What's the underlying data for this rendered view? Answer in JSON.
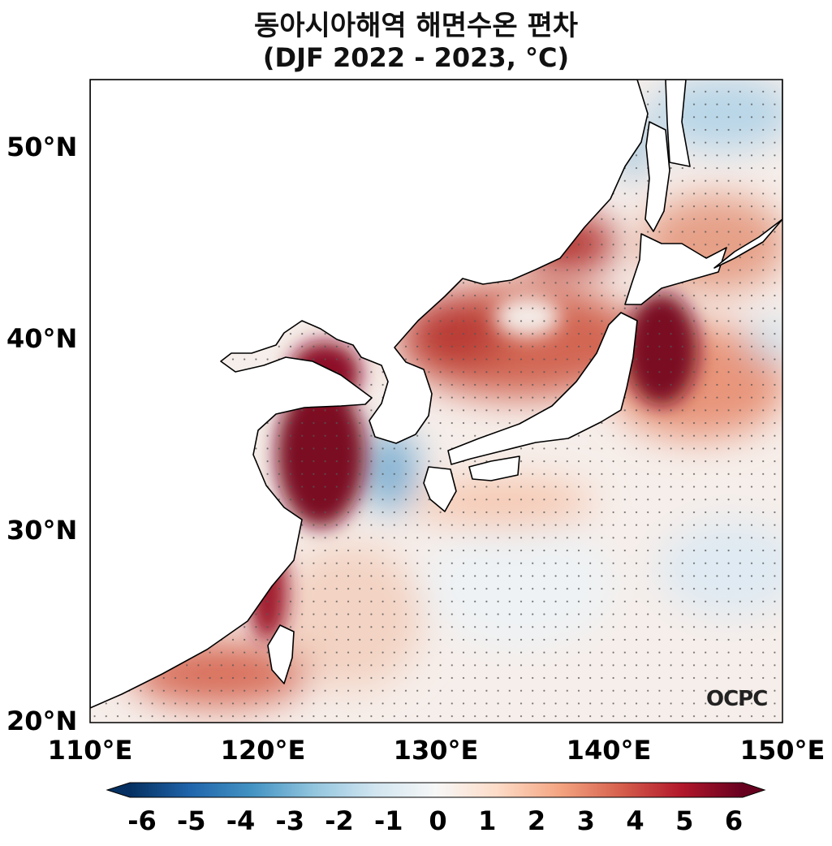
{
  "title": "동아시아해역 해면수온 편차",
  "subtitle": "(DJF 2022 - 2023, °C)",
  "map": {
    "region": "East Asian seas",
    "lon_range": [
      110,
      150
    ],
    "lat_range": [
      20,
      53.5
    ],
    "y_ticks": [
      "50°N",
      "40°N",
      "30°N",
      "20°N"
    ],
    "x_ticks": [
      "110°E",
      "120°E",
      "130°E",
      "140°E",
      "150°E"
    ],
    "variable": "SST anomaly",
    "stippling": true,
    "land_color": "#ffffff",
    "coastline_color": "#000000"
  },
  "colorbar": {
    "colormap": "RdBu_r",
    "range": [
      -6,
      6
    ],
    "extend": "both",
    "ticks": [
      "-6",
      "-5",
      "-4",
      "-3",
      "-2",
      "-1",
      "0",
      "1",
      "2",
      "3",
      "4",
      "5",
      "6"
    ],
    "colors": [
      "#053061",
      "#2166ac",
      "#4393c3",
      "#92c5de",
      "#d1e5f0",
      "#f7f7f7",
      "#fddbc7",
      "#f4a582",
      "#d6604d",
      "#b2182b",
      "#67001f"
    ]
  },
  "logo": "OCPC"
}
